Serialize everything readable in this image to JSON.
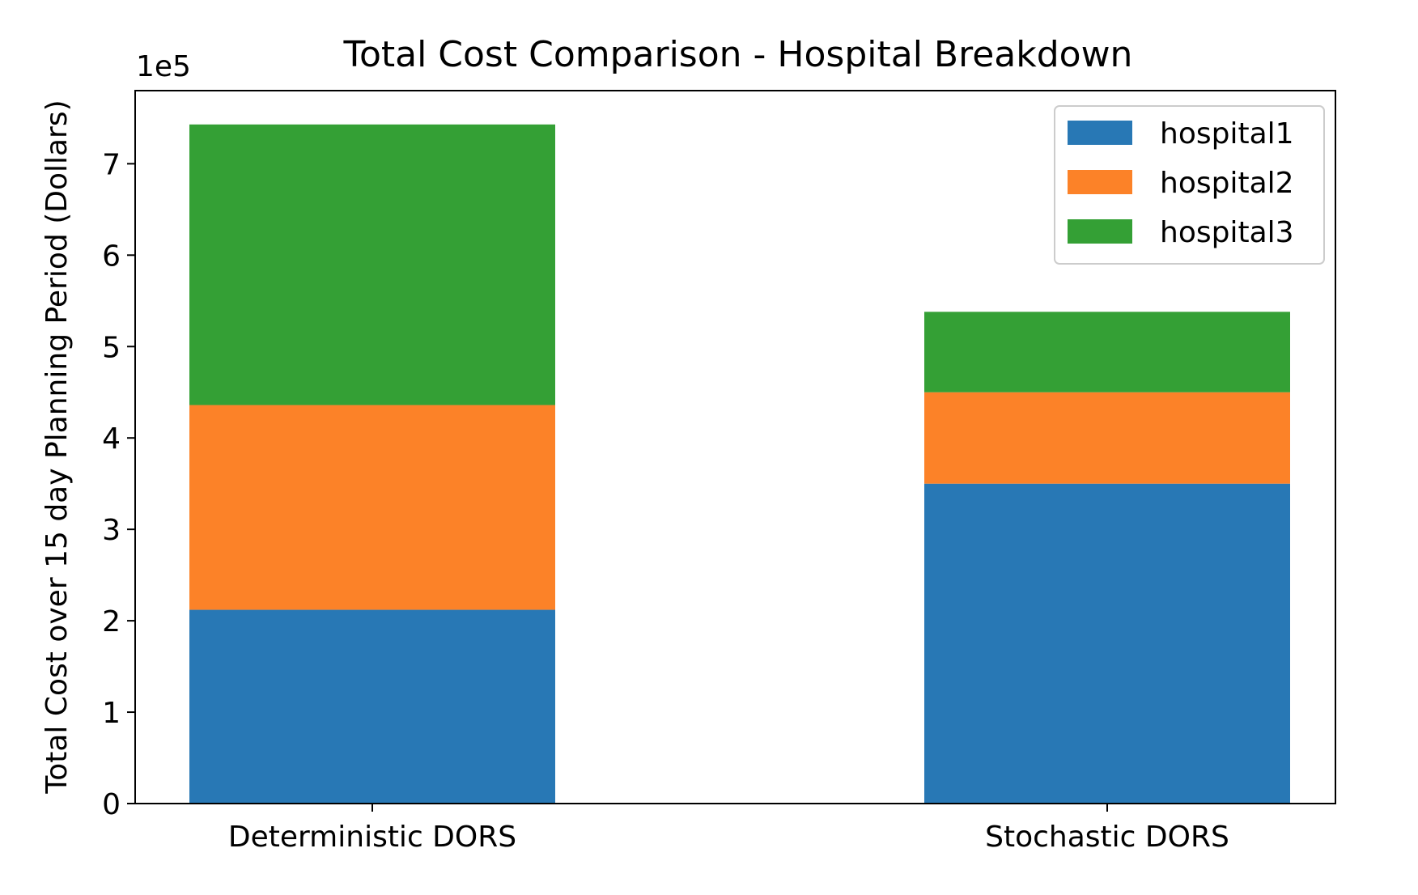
{
  "chart_data": {
    "type": "bar",
    "stacked": true,
    "title": "Total Cost Comparison - Hospital Breakdown",
    "xlabel": "",
    "ylabel": "Total Cost over 15 day Planning Period (Dollars)",
    "y_offset_label": "1e5",
    "y_scale_factor": 100000,
    "ylim": [
      0,
      780000
    ],
    "y_ticks": [
      0,
      1,
      2,
      3,
      4,
      5,
      6,
      7
    ],
    "categories": [
      "Deterministic DORS",
      "Stochastic DORS"
    ],
    "series": [
      {
        "name": "hospital1",
        "color": "#2878b5",
        "values": [
          212000,
          350000
        ]
      },
      {
        "name": "hospital2",
        "color": "#fc8228",
        "values": [
          224000,
          100000
        ]
      },
      {
        "name": "hospital3",
        "color": "#34a035",
        "values": [
          307000,
          88000
        ]
      }
    ],
    "legend_position": "top-right",
    "grid": false
  }
}
